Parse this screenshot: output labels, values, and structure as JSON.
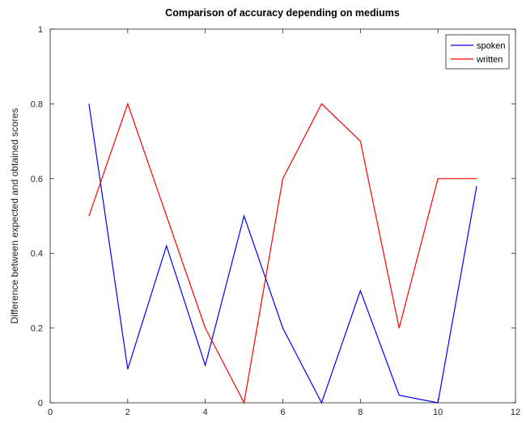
{
  "chart_data": {
    "type": "line",
    "title": "Comparison of accuracy depending on mediums",
    "xlabel": "",
    "ylabel": "Difference between expected and obtained scores",
    "xlim": [
      0,
      12
    ],
    "ylim": [
      0,
      1
    ],
    "xticks": [
      0,
      2,
      4,
      6,
      8,
      10,
      12
    ],
    "xtick_labels": [
      "0",
      "2",
      "4",
      "6",
      "8",
      "10",
      "12"
    ],
    "yticks": [
      0,
      0.2,
      0.4,
      0.6,
      0.8,
      1
    ],
    "ytick_labels": [
      "0",
      "0.2",
      "0.4",
      "0.6",
      "0.8",
      "1"
    ],
    "grid": false,
    "legend_position": "top-right",
    "x": [
      1,
      2,
      3,
      4,
      5,
      6,
      7,
      8,
      9,
      10,
      11
    ],
    "series": [
      {
        "name": "spoken",
        "color": "#0000ff",
        "values": [
          0.8,
          0.09,
          0.42,
          0.1,
          0.5,
          0.2,
          0.0,
          0.3,
          0.02,
          0.0,
          0.58
        ]
      },
      {
        "name": "written",
        "color": "#ff0000",
        "values": [
          0.5,
          0.8,
          0.5,
          0.2,
          0.0,
          0.6,
          0.8,
          0.7,
          0.2,
          0.6,
          0.6
        ]
      }
    ]
  }
}
